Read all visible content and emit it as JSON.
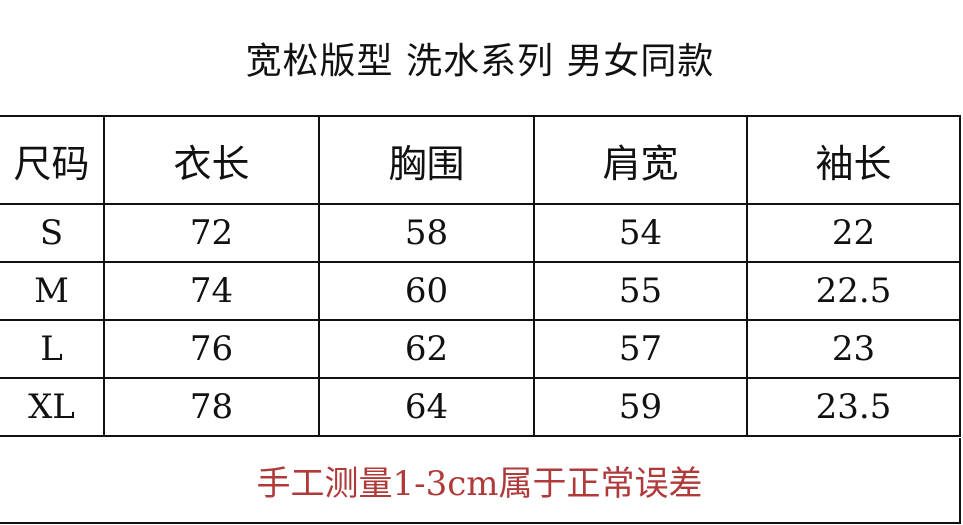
{
  "title": "宽松版型 洗水系列 男女同款",
  "headers": [
    "尺码",
    "衣长",
    "胸围",
    "肩宽",
    "袖长"
  ],
  "rows": [
    [
      "S",
      "72",
      "58",
      "54",
      "22"
    ],
    [
      "M",
      "74",
      "60",
      "55",
      "22.5"
    ],
    [
      "L",
      "76",
      "62",
      "57",
      "23"
    ],
    [
      "XL",
      "78",
      "64",
      "59",
      "23.5"
    ]
  ],
  "footer_note": "手工测量1-3cm属于正常误差",
  "colors": {
    "note": "#b03a3a",
    "border": "#111111"
  }
}
